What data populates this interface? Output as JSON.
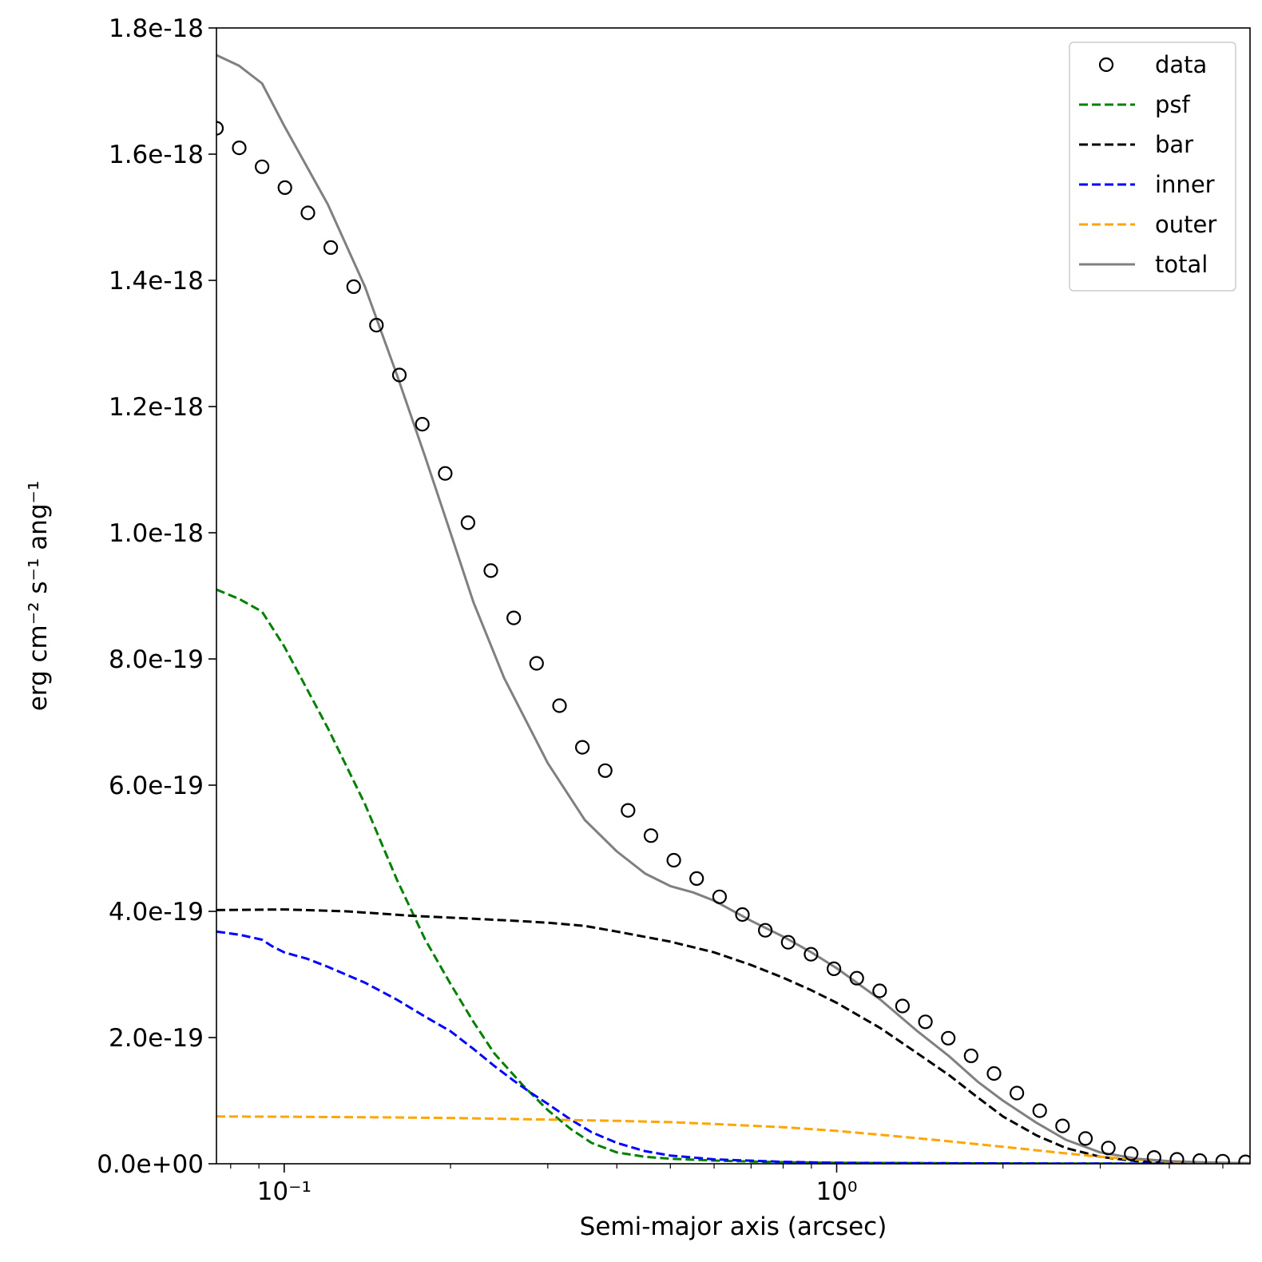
{
  "chart_data": {
    "type": "line",
    "title": "",
    "xlabel": "Semi-major axis (arcsec)",
    "ylabel": "erg cm⁻² s⁻¹ ang⁻¹",
    "xscale": "log",
    "xlim": [
      0.0754,
      5.6
    ],
    "ylim": [
      0,
      1.8e-18
    ],
    "legend_loc": "upper right",
    "x_ticks": [
      {
        "value": 0.1,
        "label": "10⁻¹"
      },
      {
        "value": 1,
        "label": "10⁰"
      }
    ],
    "y_ticks": [
      {
        "value": 0,
        "label": "0.0e+00"
      },
      {
        "value": 2e-19,
        "label": "2.0e-19"
      },
      {
        "value": 4e-19,
        "label": "4.0e-19"
      },
      {
        "value": 6e-19,
        "label": "6.0e-19"
      },
      {
        "value": 8e-19,
        "label": "8.0e-19"
      },
      {
        "value": 1e-18,
        "label": "1.0e-18"
      },
      {
        "value": 1.2e-18,
        "label": "1.2e-18"
      },
      {
        "value": 1.4e-18,
        "label": "1.4e-18"
      },
      {
        "value": 1.6e-18,
        "label": "1.6e-18"
      },
      {
        "value": 1.8e-18,
        "label": "1.8e-18"
      }
    ],
    "x": [
      0.0754,
      0.0829,
      0.0912,
      0.1003,
      0.1104,
      0.1214,
      0.1336,
      0.1469,
      0.1616,
      0.1778,
      0.1956,
      0.2151,
      0.2366,
      0.2603,
      0.2863,
      0.315,
      0.3465,
      0.3811,
      0.4192,
      0.4612,
      0.5073,
      0.558,
      0.6138,
      0.6752,
      0.7427,
      0.817,
      0.8987,
      0.9886,
      1.0874,
      1.1962,
      1.3158,
      1.4474,
      1.5921,
      1.7513,
      1.9265,
      2.1191,
      2.331,
      2.5641,
      2.8206,
      3.1026,
      3.4129,
      3.7542,
      4.1296,
      4.5426,
      4.9968,
      5.4965
    ],
    "series": [
      {
        "name": "data",
        "style": "markers",
        "color": "#000000",
        "values": [
          1.641e-18,
          1.61e-18,
          1.58e-18,
          1.547e-18,
          1.507e-18,
          1.452e-18,
          1.39e-18,
          1.329e-18,
          1.25e-18,
          1.172e-18,
          1.094e-18,
          1.016e-18,
          9.4e-19,
          8.65e-19,
          7.93e-19,
          7.26e-19,
          6.6e-19,
          6.23e-19,
          5.6e-19,
          5.2e-19,
          4.81e-19,
          4.52e-19,
          4.23e-19,
          3.95e-19,
          3.7e-19,
          3.51e-19,
          3.32e-19,
          3.09e-19,
          2.94e-19,
          2.74e-19,
          2.5e-19,
          2.25e-19,
          1.99e-19,
          1.71e-19,
          1.43e-19,
          1.12e-19,
          8.4e-20,
          6e-20,
          4e-20,
          2.5e-20,
          1.6e-20,
          1e-20,
          7e-21,
          5e-21,
          4e-21,
          3e-21
        ]
      },
      {
        "name": "psf",
        "style": "dashed",
        "color": "#008000",
        "x": [
          0.0754,
          0.0829,
          0.0912,
          0.1,
          0.12,
          0.14,
          0.16,
          0.18,
          0.2,
          0.22,
          0.24,
          0.27,
          0.3,
          0.33,
          0.36,
          0.4,
          0.45,
          0.5,
          0.6,
          0.7,
          0.8,
          1.0,
          1.5,
          2.0,
          3.0,
          5.6
        ],
        "values": [
          9.1e-19,
          8.95e-19,
          8.75e-19,
          8.2e-19,
          6.9e-19,
          5.7e-19,
          4.5e-19,
          3.55e-19,
          2.85e-19,
          2.25e-19,
          1.75e-19,
          1.25e-19,
          8.5e-20,
          5.5e-20,
          3.3e-20,
          1.8e-20,
          1.1e-20,
          8e-21,
          5e-21,
          3.5e-21,
          2.5e-21,
          1.5e-21,
          1e-21,
          5e-22,
          3e-22,
          1e-22
        ]
      },
      {
        "name": "bar",
        "style": "dashed",
        "color": "#000000",
        "x": [
          0.0754,
          0.1,
          0.13,
          0.17,
          0.2,
          0.25,
          0.3,
          0.35,
          0.4,
          0.5,
          0.6,
          0.7,
          0.8,
          0.9,
          1.0,
          1.2,
          1.4,
          1.6,
          1.8,
          2.0,
          2.3,
          2.6,
          3.0,
          3.5,
          4.0,
          4.5,
          5.0,
          5.6
        ],
        "values": [
          4.02e-19,
          4.03e-19,
          4e-19,
          3.93e-19,
          3.9e-19,
          3.86e-19,
          3.82e-19,
          3.77e-19,
          3.68e-19,
          3.52e-19,
          3.35e-19,
          3.15e-19,
          2.95e-19,
          2.75e-19,
          2.55e-19,
          2.15e-19,
          1.75e-19,
          1.4e-19,
          1.05e-19,
          7.5e-20,
          4.5e-20,
          2.5e-20,
          1.1e-20,
          4e-21,
          1.5e-21,
          8e-22,
          5e-22,
          3e-22
        ]
      },
      {
        "name": "inner",
        "style": "dashed",
        "color": "#0000ff",
        "x": [
          0.0754,
          0.0829,
          0.0912,
          0.095,
          0.1,
          0.11,
          0.12,
          0.14,
          0.16,
          0.18,
          0.2,
          0.22,
          0.24,
          0.26,
          0.28,
          0.3,
          0.33,
          0.36,
          0.4,
          0.45,
          0.5,
          0.6,
          0.8,
          1.0,
          1.5,
          2.0,
          3.0,
          5.6
        ],
        "values": [
          3.68e-19,
          3.63e-19,
          3.55e-19,
          3.45e-19,
          3.35e-19,
          3.25e-19,
          3.12e-19,
          2.87e-19,
          2.6e-19,
          2.33e-19,
          2.1e-19,
          1.82e-19,
          1.55e-19,
          1.32e-19,
          1.12e-19,
          9.5e-20,
          7e-20,
          5e-20,
          3.3e-20,
          2e-20,
          1.3e-20,
          7e-21,
          3e-21,
          1.5e-21,
          8e-22,
          5e-22,
          2e-22,
          1e-22
        ]
      },
      {
        "name": "outer",
        "style": "dashed",
        "color": "#ffa500",
        "x": [
          0.0754,
          0.1,
          0.15,
          0.2,
          0.3,
          0.4,
          0.5,
          0.6,
          0.8,
          1.0,
          1.2,
          1.5,
          2.0,
          2.5,
          3.0,
          3.5,
          4.0,
          4.5,
          5.0,
          5.6
        ],
        "values": [
          7.5e-20,
          7.45e-20,
          7.35e-20,
          7.25e-20,
          7e-20,
          6.8e-20,
          6.6e-20,
          6.3e-20,
          5.8e-20,
          5.2e-20,
          4.6e-20,
          3.8e-20,
          2.7e-20,
          1.8e-20,
          1.1e-20,
          6.5e-21,
          3.5e-21,
          1.8e-21,
          1e-21,
          5e-22
        ]
      },
      {
        "name": "total",
        "style": "solid",
        "color": "#808080",
        "x": [
          0.0754,
          0.0829,
          0.0912,
          0.1,
          0.12,
          0.14,
          0.16,
          0.18,
          0.2,
          0.22,
          0.25,
          0.3,
          0.35,
          0.4,
          0.45,
          0.5,
          0.55,
          0.6,
          0.7,
          0.8,
          0.9,
          1.0,
          1.2,
          1.4,
          1.6,
          1.8,
          2.0,
          2.3,
          2.6,
          3.0,
          3.5,
          4.0,
          4.5,
          5.0,
          5.6
        ],
        "values": [
          1.757e-18,
          1.74e-18,
          1.712e-18,
          1.645e-18,
          1.52e-18,
          1.39e-18,
          1.25e-18,
          1.12e-18,
          1e-18,
          8.9e-19,
          7.7e-19,
          6.35e-19,
          5.45e-19,
          4.95e-19,
          4.6e-19,
          4.4e-19,
          4.3e-19,
          4.17e-19,
          3.85e-19,
          3.6e-19,
          3.35e-19,
          3.1e-19,
          2.6e-19,
          2.1e-19,
          1.7e-19,
          1.3e-19,
          1e-19,
          6.5e-20,
          3.8e-20,
          1.8e-20,
          8e-21,
          4e-21,
          2.5e-21,
          1.5e-21,
          1e-21
        ]
      }
    ]
  }
}
